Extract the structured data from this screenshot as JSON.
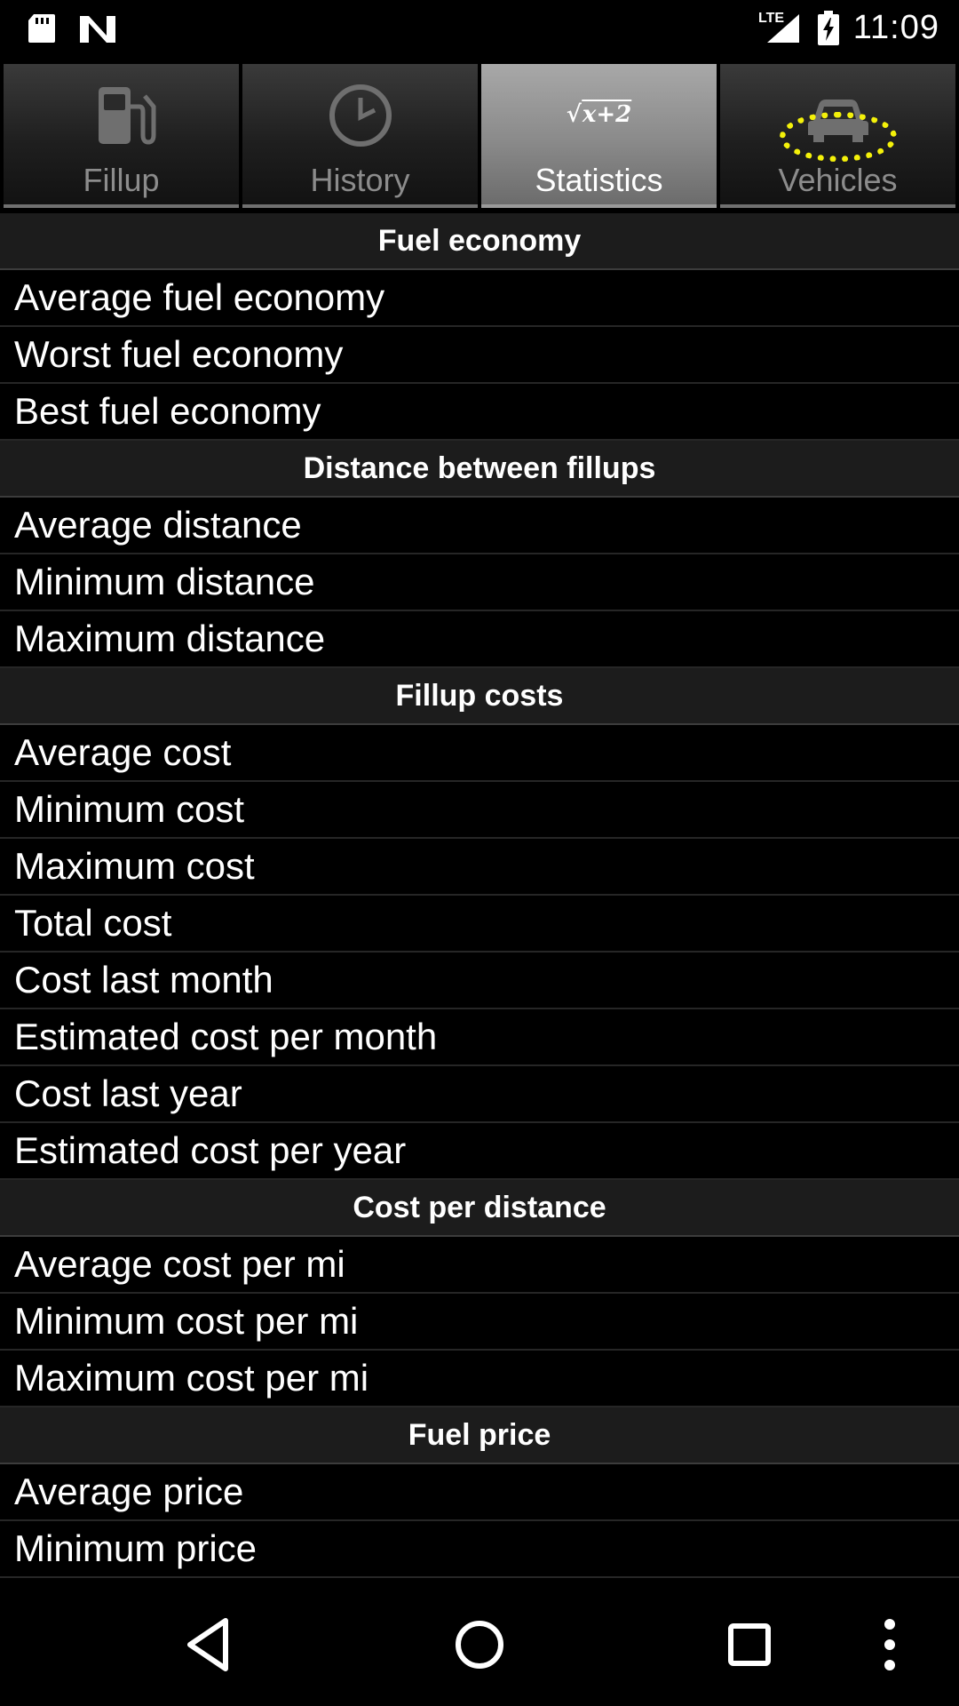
{
  "status_bar": {
    "network_label": "LTE",
    "time": "11:09"
  },
  "tabs": [
    {
      "label": "Fillup",
      "icon": "fuel-pump-icon",
      "selected": false
    },
    {
      "label": "History",
      "icon": "clock-icon",
      "selected": false
    },
    {
      "label": "Statistics",
      "icon": "sqrt-formula-icon",
      "selected": true,
      "icon_text": "x+2"
    },
    {
      "label": "Vehicles",
      "icon": "car-icon",
      "selected": false,
      "highlighted": true
    }
  ],
  "sections": [
    {
      "title": "Fuel economy",
      "rows": [
        "Average fuel economy",
        "Worst fuel economy",
        "Best fuel economy"
      ]
    },
    {
      "title": "Distance between fillups",
      "rows": [
        "Average distance",
        "Minimum distance",
        "Maximum distance"
      ]
    },
    {
      "title": "Fillup costs",
      "rows": [
        "Average cost",
        "Minimum cost",
        "Maximum cost",
        "Total cost",
        "Cost last month",
        "Estimated cost per month",
        "Cost last year",
        "Estimated cost per year"
      ]
    },
    {
      "title": "Cost per distance",
      "rows": [
        "Average cost per mi",
        "Minimum cost per mi",
        "Maximum cost per mi"
      ]
    },
    {
      "title": "Fuel price",
      "rows": [
        "Average price",
        "Minimum price"
      ]
    }
  ],
  "colors": {
    "highlight_ring": "#f4f10a",
    "selected_tab": "#8a8a8a",
    "section_header_bg": "#1c1c1c"
  }
}
